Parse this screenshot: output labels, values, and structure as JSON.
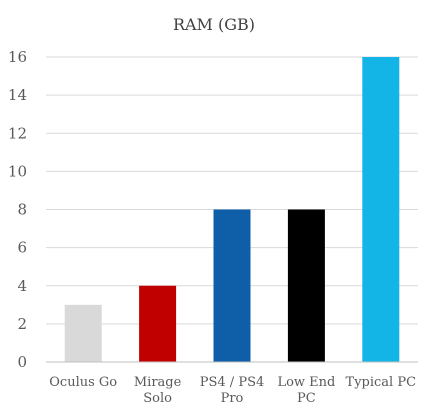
{
  "chart_data": {
    "type": "bar",
    "title": "RAM (GB)",
    "xlabel": "",
    "ylabel": "",
    "categories": [
      "Oculus Go",
      "Mirage Solo",
      "PS4 / PS4 Pro",
      "Low End PC",
      "Typical PC"
    ],
    "category_lines": [
      [
        "Oculus Go"
      ],
      [
        "Mirage",
        "Solo"
      ],
      [
        "PS4 / PS4",
        "Pro"
      ],
      [
        "Low End",
        "PC"
      ],
      [
        "Typical PC"
      ]
    ],
    "values": [
      3,
      4,
      8,
      8,
      16
    ],
    "colors": [
      "#d9d9d9",
      "#c00000",
      "#0f5fa8",
      "#000000",
      "#13b5e6"
    ],
    "ylim": [
      0,
      16
    ],
    "yticks": [
      0,
      2,
      4,
      6,
      8,
      10,
      12,
      14,
      16
    ],
    "grid": true,
    "legend": "none"
  }
}
